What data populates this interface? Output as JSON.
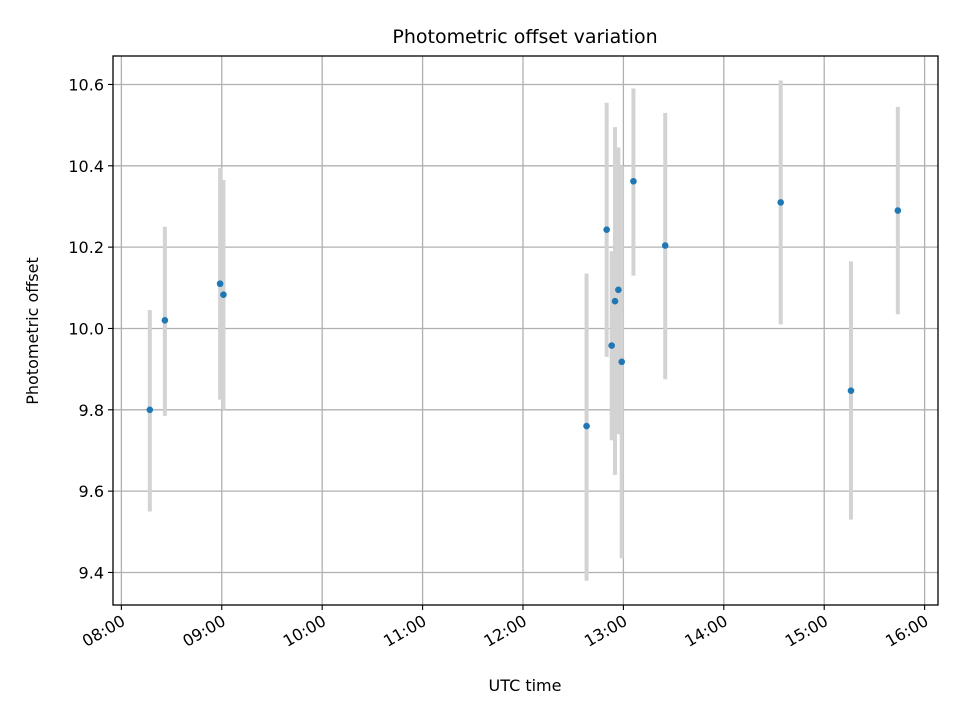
{
  "chart_data": {
    "type": "scatter",
    "title": "Photometric offset variation",
    "xlabel": "UTC time",
    "ylabel": "Photometric offset",
    "xlim": [
      "07:55",
      "16:08"
    ],
    "ylim": [
      9.32,
      10.67
    ],
    "x_ticks": [
      "08:00",
      "09:00",
      "10:00",
      "11:00",
      "12:00",
      "13:00",
      "14:00",
      "15:00",
      "16:00"
    ],
    "y_ticks": [
      "9.4",
      "9.6",
      "9.8",
      "10.0",
      "10.2",
      "10.4",
      "10.6"
    ],
    "grid": true,
    "errorbar_color": "#d3d3d3",
    "marker_color": "#1f77b4",
    "points": [
      {
        "x": "08:17",
        "y": 9.8,
        "ylo": 9.55,
        "yhi": 10.045
      },
      {
        "x": "08:26",
        "y": 10.02,
        "ylo": 9.785,
        "yhi": 10.25
      },
      {
        "x": "08:59",
        "y": 10.11,
        "ylo": 9.825,
        "yhi": 10.395
      },
      {
        "x": "09:01",
        "y": 10.083,
        "ylo": 9.8,
        "yhi": 10.365
      },
      {
        "x": "12:38",
        "y": 9.76,
        "ylo": 9.38,
        "yhi": 10.135
      },
      {
        "x": "12:50",
        "y": 10.243,
        "ylo": 9.93,
        "yhi": 10.555
      },
      {
        "x": "12:53",
        "y": 9.958,
        "ylo": 9.725,
        "yhi": 10.19
      },
      {
        "x": "12:55",
        "y": 10.067,
        "ylo": 9.64,
        "yhi": 10.495
      },
      {
        "x": "12:57",
        "y": 10.095,
        "ylo": 9.74,
        "yhi": 10.445
      },
      {
        "x": "12:59",
        "y": 9.918,
        "ylo": 9.435,
        "yhi": 10.4
      },
      {
        "x": "13:06",
        "y": 10.362,
        "ylo": 10.13,
        "yhi": 10.59
      },
      {
        "x": "13:25",
        "y": 10.204,
        "ylo": 9.875,
        "yhi": 10.53
      },
      {
        "x": "14:34",
        "y": 10.31,
        "ylo": 10.01,
        "yhi": 10.61
      },
      {
        "x": "15:16",
        "y": 9.847,
        "ylo": 9.53,
        "yhi": 10.165
      },
      {
        "x": "15:44",
        "y": 10.29,
        "ylo": 10.035,
        "yhi": 10.545
      }
    ]
  }
}
